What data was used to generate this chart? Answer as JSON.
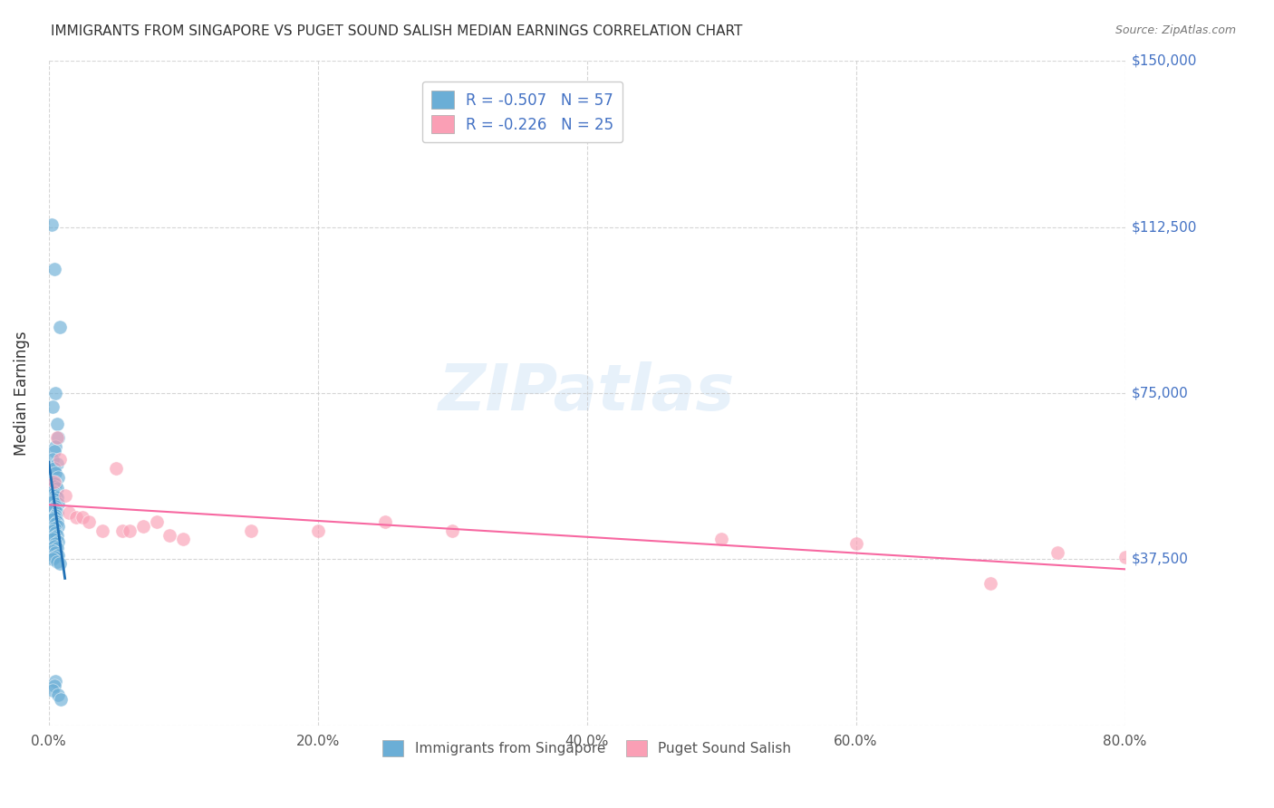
{
  "title": "IMMIGRANTS FROM SINGAPORE VS PUGET SOUND SALISH MEDIAN EARNINGS CORRELATION CHART",
  "source_text": "Source: ZipAtlas.com",
  "xlabel": "",
  "ylabel": "Median Earnings",
  "xmin": 0.0,
  "xmax": 0.8,
  "ymin": 0,
  "ymax": 150000,
  "yticks": [
    0,
    37500,
    75000,
    112500,
    150000
  ],
  "ytick_labels": [
    "",
    "$37,500",
    "$75,000",
    "$112,500",
    "$150,000"
  ],
  "xtick_labels": [
    "0.0%",
    "20.0%",
    "40.0%",
    "60.0%",
    "80.0%"
  ],
  "xticks": [
    0.0,
    0.2,
    0.4,
    0.6,
    0.8
  ],
  "blue_R": -0.507,
  "blue_N": 57,
  "pink_R": -0.226,
  "pink_N": 25,
  "blue_color": "#6baed6",
  "pink_color": "#fa9fb5",
  "blue_line_color": "#2171b5",
  "pink_line_color": "#f768a1",
  "watermark": "ZIPatlas",
  "blue_scatter_x": [
    0.002,
    0.004,
    0.008,
    0.005,
    0.003,
    0.006,
    0.007,
    0.005,
    0.004,
    0.003,
    0.006,
    0.004,
    0.005,
    0.007,
    0.003,
    0.005,
    0.004,
    0.006,
    0.003,
    0.004,
    0.005,
    0.006,
    0.004,
    0.003,
    0.007,
    0.005,
    0.004,
    0.003,
    0.006,
    0.005,
    0.004,
    0.003,
    0.006,
    0.005,
    0.007,
    0.004,
    0.003,
    0.005,
    0.006,
    0.004,
    0.003,
    0.007,
    0.005,
    0.004,
    0.006,
    0.003,
    0.005,
    0.007,
    0.004,
    0.003,
    0.006,
    0.008,
    0.005,
    0.004,
    0.003,
    0.007,
    0.009
  ],
  "blue_scatter_y": [
    113000,
    103000,
    90000,
    75000,
    72000,
    68000,
    65000,
    63000,
    62000,
    60000,
    59000,
    58000,
    57000,
    56000,
    55000,
    54500,
    54000,
    53500,
    53000,
    52500,
    52000,
    51500,
    51000,
    50500,
    50000,
    49500,
    49000,
    48500,
    48000,
    47500,
    47000,
    46500,
    46000,
    45500,
    45000,
    44500,
    44000,
    43500,
    43000,
    42500,
    42000,
    41500,
    41000,
    40500,
    40000,
    39500,
    39000,
    38500,
    38000,
    37500,
    37000,
    36500,
    10000,
    9000,
    8000,
    7000,
    6000
  ],
  "pink_scatter_x": [
    0.004,
    0.006,
    0.008,
    0.012,
    0.015,
    0.02,
    0.025,
    0.03,
    0.04,
    0.05,
    0.055,
    0.06,
    0.07,
    0.08,
    0.09,
    0.1,
    0.15,
    0.2,
    0.25,
    0.3,
    0.5,
    0.6,
    0.7,
    0.75,
    0.8
  ],
  "pink_scatter_y": [
    55000,
    65000,
    60000,
    52000,
    48000,
    47000,
    47000,
    46000,
    44000,
    58000,
    44000,
    44000,
    45000,
    46000,
    43000,
    42000,
    44000,
    44000,
    46000,
    44000,
    42000,
    41000,
    32000,
    39000,
    38000
  ]
}
